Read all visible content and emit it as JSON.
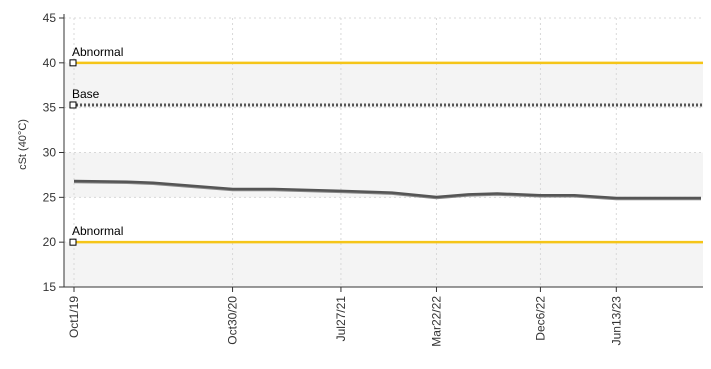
{
  "chart_data": {
    "type": "line",
    "ylabel": "cSt (40°C)",
    "ylim": [
      15,
      45
    ],
    "y_ticks": [
      15,
      20,
      25,
      30,
      35,
      40,
      45
    ],
    "x_tick_labels": [
      "Oct1/19",
      "Oct30/20",
      "Jul27/21",
      "Mar22/22",
      "Dec6/22",
      "Jun13/23"
    ],
    "x_tick_dates": [
      "2019-10-01",
      "2020-10-30",
      "2021-07-27",
      "2022-03-22",
      "2022-12-06",
      "2023-06-13"
    ],
    "xlim": [
      "2019-10-01",
      "2024-01-10"
    ],
    "grid": true,
    "reference_lines": [
      {
        "label": "Abnormal",
        "value": 40,
        "color": "#f5c518",
        "style": "solid"
      },
      {
        "label": "Base",
        "value": 35.3,
        "color": "#555555",
        "style": "dotted"
      },
      {
        "label": "Abnormal",
        "value": 20,
        "color": "#f5c518",
        "style": "solid"
      }
    ],
    "series": [
      {
        "color": "#555555",
        "points": [
          {
            "x": "2019-10-01",
            "y": 26.8
          },
          {
            "x": "2020-02-20",
            "y": 26.7
          },
          {
            "x": "2020-04-15",
            "y": 26.6
          },
          {
            "x": "2020-10-30",
            "y": 25.9
          },
          {
            "x": "2021-02-10",
            "y": 25.9
          },
          {
            "x": "2021-07-27",
            "y": 25.7
          },
          {
            "x": "2021-12-01",
            "y": 25.5
          },
          {
            "x": "2022-03-22",
            "y": 25.0
          },
          {
            "x": "2022-06-10",
            "y": 25.3
          },
          {
            "x": "2022-08-20",
            "y": 25.4
          },
          {
            "x": "2022-12-06",
            "y": 25.2
          },
          {
            "x": "2023-03-01",
            "y": 25.2
          },
          {
            "x": "2023-06-13",
            "y": 24.9
          },
          {
            "x": "2024-01-10",
            "y": 24.9
          }
        ]
      }
    ]
  }
}
